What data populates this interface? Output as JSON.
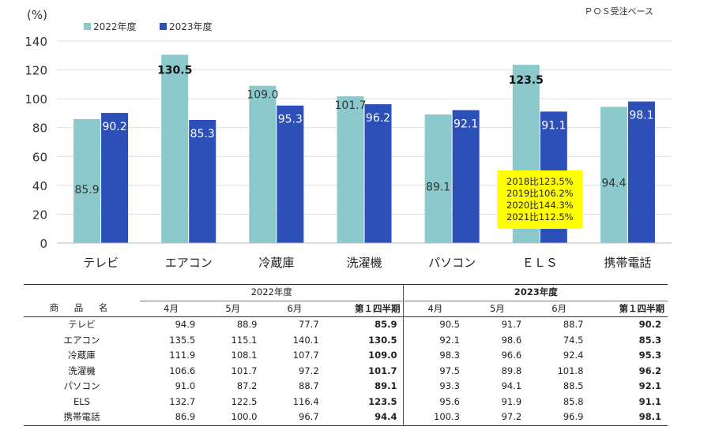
{
  "chart_data": {
    "type": "bar",
    "y_unit_label": "(%)",
    "note": "ＰＯＳ受注ベース",
    "categories": [
      "テレビ",
      "エアコン",
      "冷蔵庫",
      "洗濯機",
      "パソコン",
      "ＥＬＳ",
      "携帯電話"
    ],
    "series": [
      {
        "name": "2022年度",
        "values": [
          85.9,
          130.5,
          109.0,
          101.7,
          89.1,
          123.5,
          94.4
        ],
        "color": "#8cc9cc",
        "label_text": [
          "85.9",
          "130.5",
          "109.0",
          "101.7",
          "89.1",
          "123.5",
          "94.4"
        ]
      },
      {
        "name": "2023年度",
        "values": [
          90.2,
          85.3,
          95.3,
          96.2,
          92.1,
          91.1,
          98.1
        ],
        "color": "#2c4fb8",
        "label_text": [
          "90.2",
          "85.3",
          "95.3",
          "96.2",
          "92.1",
          "91.1",
          "98.1"
        ]
      }
    ],
    "ylim": [
      0,
      140
    ],
    "yticks": [
      0,
      20,
      40,
      60,
      80,
      100,
      120,
      140
    ],
    "grid": true,
    "legend_position": "top-left",
    "annotation": {
      "category": "ＥＬＳ",
      "lines": [
        "2018比123.5%",
        "2019比106.2%",
        "2020比144.3%",
        "2021比112.5%"
      ],
      "background": "#ffff00"
    }
  },
  "table": {
    "product_header": "商 品 名",
    "year_2022": "2022年度",
    "year_2023": "2023年度",
    "months": [
      "4月",
      "5月",
      "6月"
    ],
    "quarter": "第１四半期",
    "rows": [
      {
        "name": "テレビ",
        "v2022": [
          "94.9",
          "88.9",
          "77.7",
          "85.9"
        ],
        "v2023": [
          "90.5",
          "91.7",
          "88.7",
          "90.2"
        ]
      },
      {
        "name": "エアコン",
        "v2022": [
          "135.5",
          "115.1",
          "140.1",
          "130.5"
        ],
        "v2023": [
          "92.1",
          "98.6",
          "74.5",
          "85.3"
        ]
      },
      {
        "name": "冷蔵庫",
        "v2022": [
          "111.9",
          "108.1",
          "107.7",
          "109.0"
        ],
        "v2023": [
          "98.3",
          "96.6",
          "92.4",
          "95.3"
        ]
      },
      {
        "name": "洗濯機",
        "v2022": [
          "106.6",
          "101.7",
          "97.2",
          "101.7"
        ],
        "v2023": [
          "97.5",
          "89.8",
          "101.8",
          "96.2"
        ]
      },
      {
        "name": "パソコン",
        "v2022": [
          "91.0",
          "87.2",
          "88.7",
          "89.1"
        ],
        "v2023": [
          "93.3",
          "94.1",
          "88.5",
          "92.1"
        ]
      },
      {
        "name": "ELS",
        "v2022": [
          "132.7",
          "122.5",
          "116.4",
          "123.5"
        ],
        "v2023": [
          "95.6",
          "91.9",
          "85.8",
          "91.1"
        ]
      },
      {
        "name": "携帯電話",
        "v2022": [
          "86.9",
          "100.0",
          "96.7",
          "94.4"
        ],
        "v2023": [
          "100.3",
          "97.2",
          "96.9",
          "98.1"
        ]
      }
    ]
  }
}
